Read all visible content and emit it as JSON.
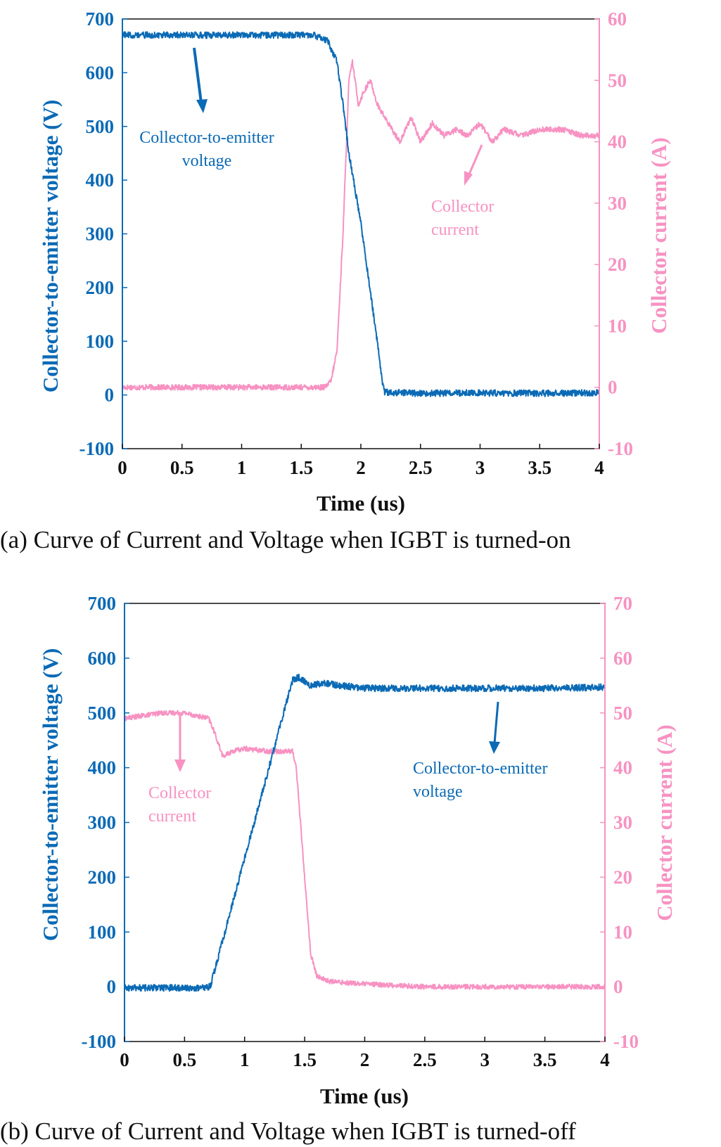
{
  "colors": {
    "voltage": "#0b6ab5",
    "current": "#f792c2",
    "axis": "#111111"
  },
  "chart_data": [
    {
      "type": "line",
      "caption": "(a) Curve of Current and Voltage when IGBT is turned-on",
      "xlabel": "Time (us)",
      "ylabel_left": "Collector-to-emitter voltage (V)",
      "ylabel_right": "Collector current (A)",
      "xlim": [
        0,
        4
      ],
      "ylim_left": [
        -100,
        700
      ],
      "ylim_right": [
        -10,
        60
      ],
      "xticks": [
        "0",
        "0.5",
        "1",
        "1.5",
        "2",
        "2.5",
        "3",
        "3.5",
        "4"
      ],
      "yticks_left": [
        "700",
        "600",
        "500",
        "400",
        "300",
        "200",
        "100",
        "0",
        "-100"
      ],
      "yticks_right": [
        "60",
        "50",
        "40",
        "30",
        "20",
        "10",
        "0",
        "-10"
      ],
      "series": [
        {
          "name": "Collector-to-emitter voltage",
          "axis": "left",
          "noise": 6,
          "x": [
            0,
            1.6,
            1.72,
            1.8,
            1.85,
            1.9,
            2.0,
            2.05,
            2.1,
            2.15,
            2.18,
            2.2,
            2.5,
            3.0,
            3.5,
            4.0
          ],
          "y": [
            670,
            670,
            660,
            620,
            540,
            450,
            320,
            240,
            160,
            80,
            20,
            5,
            3,
            4,
            3,
            4
          ]
        },
        {
          "name": "Collector current",
          "axis": "right",
          "noise": 0.45,
          "x": [
            0,
            1.7,
            1.75,
            1.8,
            1.85,
            1.9,
            1.93,
            1.98,
            2.02,
            2.08,
            2.14,
            2.2,
            2.26,
            2.33,
            2.42,
            2.5,
            2.6,
            2.7,
            2.8,
            2.9,
            3.0,
            3.1,
            3.2,
            3.35,
            3.5,
            3.7,
            3.85,
            4.0
          ],
          "y": [
            0,
            0,
            1,
            6,
            25,
            50,
            53,
            46,
            48,
            50,
            46,
            44,
            42,
            40,
            44,
            40,
            43,
            41,
            42,
            41,
            43,
            40,
            42,
            41,
            42,
            42,
            41,
            41
          ]
        }
      ],
      "annotations": [
        {
          "text": [
            "Collector-to-emitter",
            "voltage"
          ],
          "series": "voltage"
        },
        {
          "text": [
            "Collector",
            "current"
          ],
          "series": "current"
        }
      ]
    },
    {
      "type": "line",
      "caption": "(b) Curve of Current and Voltage when IGBT is turned-off",
      "xlabel": "Time (us)",
      "ylabel_left": "Collector-to-emitter voltage (V)",
      "ylabel_right": "Collector current (A)",
      "xlim": [
        0,
        4
      ],
      "ylim_left": [
        -100,
        700
      ],
      "ylim_right": [
        -10,
        70
      ],
      "xticks": [
        "0",
        "0.5",
        "1",
        "1.5",
        "2",
        "2.5",
        "3",
        "3.5",
        "4"
      ],
      "yticks_left": [
        "700",
        "600",
        "500",
        "400",
        "300",
        "200",
        "100",
        "0",
        "-100"
      ],
      "yticks_right": [
        "70",
        "60",
        "50",
        "40",
        "30",
        "20",
        "10",
        "0",
        "-10"
      ],
      "series": [
        {
          "name": "Collector-to-emitter voltage",
          "axis": "left",
          "noise": 6,
          "x": [
            0,
            0.7,
            0.72,
            1.3,
            1.4,
            1.45,
            1.55,
            1.65,
            1.8,
            2.0,
            2.5,
            3.0,
            3.5,
            4.0
          ],
          "y": [
            -2,
            -2,
            5,
            480,
            560,
            565,
            550,
            555,
            550,
            545,
            545,
            545,
            545,
            547
          ]
        },
        {
          "name": "Collector current",
          "axis": "right",
          "noise": 0.45,
          "x": [
            0,
            0.3,
            0.5,
            0.7,
            0.74,
            0.82,
            0.9,
            1.0,
            1.2,
            1.4,
            1.43,
            1.5,
            1.55,
            1.6,
            1.7,
            2.0,
            2.5,
            3.0,
            3.5,
            4.0
          ],
          "y": [
            49,
            50,
            50,
            49,
            47,
            42,
            43,
            43.5,
            43,
            43,
            40,
            20,
            6,
            2,
            1,
            0.5,
            0,
            0,
            0,
            0
          ]
        }
      ],
      "annotations": [
        {
          "text": [
            "Collector",
            "current"
          ],
          "series": "current"
        },
        {
          "text": [
            "Collector-to-emitter",
            "voltage"
          ],
          "series": "voltage"
        }
      ]
    }
  ]
}
